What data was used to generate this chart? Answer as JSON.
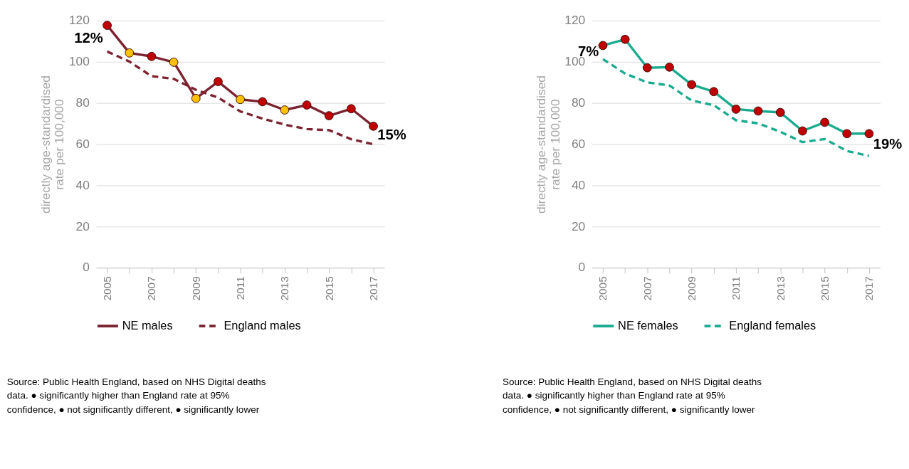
{
  "chart_data": [
    {
      "type": "line",
      "ylabel": "directly age-standardised rate per 100,000",
      "x": [
        2005,
        2006,
        2007,
        2008,
        2009,
        2010,
        2011,
        2012,
        2013,
        2014,
        2015,
        2016,
        2017
      ],
      "series": [
        {
          "name": "NE males",
          "color": "#7b2330",
          "line_style": "solid",
          "marker": "circle",
          "values": [
            117.7,
            104.3,
            102.6,
            99.8,
            82.2,
            90.4,
            81.7,
            80.6,
            76.6,
            79.0,
            73.8,
            77.2,
            68.7
          ],
          "colors": [
            "#c00000",
            "#ffc000",
            "#c00000",
            "#ffc000",
            "#ffc000",
            "#c00000",
            "#ffc000",
            "#c00000",
            "#ffc000",
            "#c00000",
            "#c00000",
            "#c00000",
            "#c00000"
          ]
        },
        {
          "name": "England males",
          "color": "#7b2330",
          "line_style": "dashed",
          "marker": "none",
          "values": [
            105.0,
            100.1,
            93.0,
            91.7,
            86.4,
            82.6,
            75.9,
            72.4,
            69.5,
            67.3,
            66.8,
            62.4,
            59.9
          ]
        }
      ],
      "xlim": [
        2004.5,
        2017.5
      ],
      "xticks": [
        2005,
        {
          "value": 2006,
          "label": null
        },
        2007,
        {
          "value": 2008,
          "label": null
        },
        2009,
        {
          "value": 2010,
          "label": null
        },
        2011,
        {
          "value": 2012,
          "label": null
        },
        2013,
        {
          "value": 2014,
          "label": null
        },
        2015,
        {
          "value": 2016,
          "label": null
        },
        2017
      ],
      "ylim": [
        0,
        120
      ],
      "yticks": [
        0,
        20,
        40,
        60,
        80,
        100,
        120
      ],
      "grid": "y",
      "legend": "bottom",
      "annotations": [
        "12%",
        "15%",
        "Source: Public Health England, based on NHS Digital deaths",
        "data. ● significantly higher than England rate at 95%",
        "confidence, ● not significantly different, ● significantly lower"
      ]
    },
    {
      "type": "line",
      "ylabel": "directly age-standardised rate per 100,000",
      "x": [
        2005,
        2006,
        2007,
        2008,
        2009,
        2010,
        2011,
        2012,
        2013,
        2014,
        2015,
        2016,
        2017
      ],
      "series": [
        {
          "name": "NE females",
          "color": "#1aab8f",
          "line_style": "solid",
          "marker": "circle",
          "values": [
            107.9,
            110.9,
            97.1,
            97.4,
            88.9,
            85.5,
            77.0,
            76.1,
            75.4,
            66.4,
            70.6,
            65.1,
            65.1
          ],
          "colors": [
            "#c00000",
            "#c00000",
            "#c00000",
            "#c00000",
            "#c00000",
            "#c00000",
            "#c00000",
            "#c00000",
            "#c00000",
            "#c00000",
            "#c00000",
            "#c00000",
            "#c00000"
          ]
        },
        {
          "name": "England females",
          "color": "#1aab8f",
          "line_style": "dashed",
          "marker": "none",
          "values": [
            101.3,
            94.3,
            90.0,
            88.5,
            81.2,
            78.9,
            71.6,
            70.1,
            66.0,
            61.0,
            62.5,
            56.7,
            54.3
          ]
        }
      ],
      "xlim": [
        2004.5,
        2017.5
      ],
      "xticks": [
        2005,
        {
          "value": 2006,
          "label": null
        },
        2007,
        {
          "value": 2008,
          "label": null
        },
        2009,
        {
          "value": 2010,
          "label": null
        },
        2011,
        {
          "value": 2012,
          "label": null
        },
        2013,
        {
          "value": 2014,
          "label": null
        },
        2015,
        {
          "value": 2016,
          "label": null
        },
        2017
      ],
      "ylim": [
        0,
        120
      ],
      "yticks": [
        0,
        20,
        40,
        60,
        80,
        100,
        120
      ],
      "grid": "y",
      "legend": "bottom",
      "annotations": [
        "7%",
        "19%",
        "Source: Public Health England, based on NHS Digital deaths",
        "data. ● significantly higher than England rate at 95%",
        "confidence, ● not significantly different, ● significantly lower"
      ]
    }
  ]
}
